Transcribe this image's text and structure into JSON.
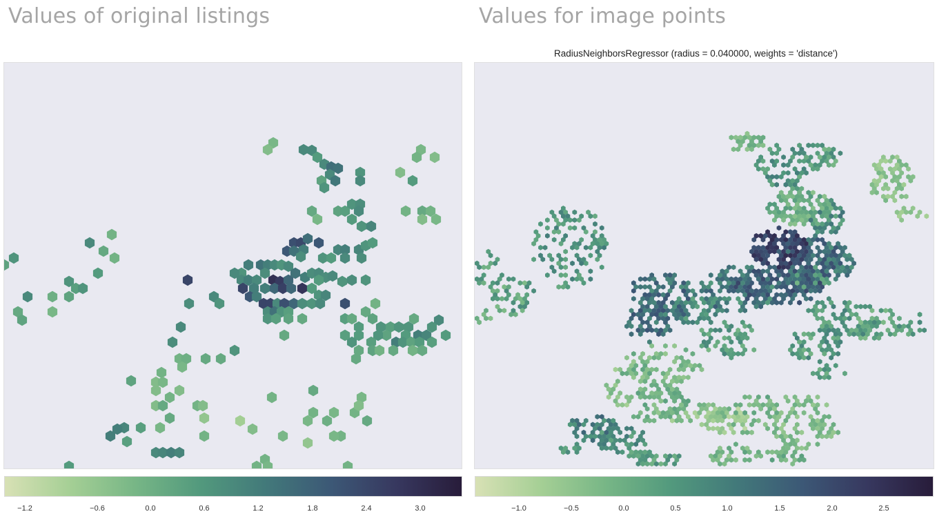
{
  "colors": {
    "cmap": [
      "#d8e1b5",
      "#a5cf95",
      "#77b686",
      "#52997d",
      "#42797a",
      "#3c5876",
      "#37385f",
      "#281c3a"
    ]
  },
  "chart_data": [
    {
      "type": "heatmap",
      "subtype": "hexbin",
      "title": "Values of original listings",
      "subtitle": "",
      "grid": false,
      "colorbar": {
        "orientation": "horizontal",
        "placement": "bottom",
        "range": [
          -1.5,
          3.4
        ],
        "ticks": [
          -1.2,
          -0.6,
          0.0,
          0.6,
          1.2,
          1.8,
          2.4,
          3.0
        ],
        "tick_labels": [
          "−1.2",
          "−0.6",
          "0.0",
          "0.6",
          "1.2",
          "1.8",
          "2.4",
          "3.0"
        ]
      }
    },
    {
      "type": "heatmap",
      "subtype": "hexbin",
      "title": "Values for image points",
      "subtitle": "RadiusNeighborsRegressor (radius = 0.040000, weights = 'distance')",
      "grid": false,
      "colorbar": {
        "orientation": "horizontal",
        "placement": "bottom",
        "range": [
          -1.4,
          2.95
        ],
        "ticks": [
          -1.0,
          -0.5,
          0.0,
          0.5,
          1.0,
          1.5,
          2.0,
          2.5
        ],
        "tick_labels": [
          "−1.0",
          "−0.5",
          "0.0",
          "0.5",
          "1.0",
          "1.5",
          "2.0",
          "2.5"
        ]
      }
    }
  ]
}
